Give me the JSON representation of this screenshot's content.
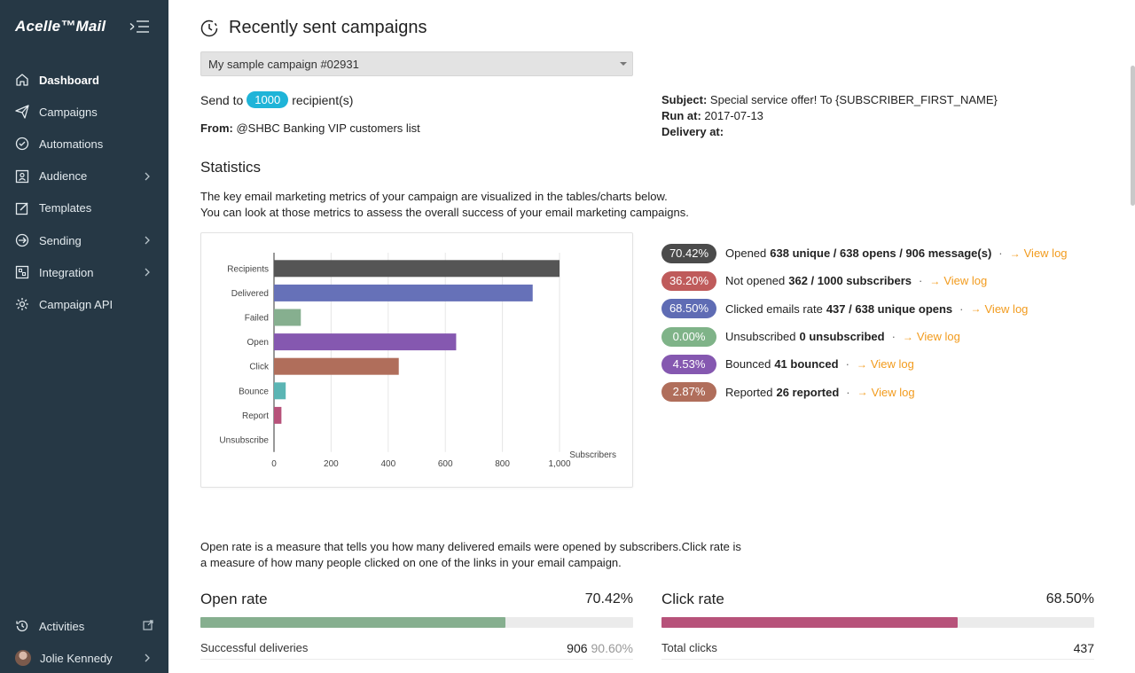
{
  "sidebar": {
    "logo": "Acelle™Mail",
    "items": [
      {
        "label": "Dashboard",
        "icon": "home-icon",
        "active": true,
        "chevron": false
      },
      {
        "label": "Campaigns",
        "icon": "paper-plane-icon",
        "active": false,
        "chevron": false
      },
      {
        "label": "Automations",
        "icon": "automation-check-icon",
        "active": false,
        "chevron": false
      },
      {
        "label": "Audience",
        "icon": "audience-icon",
        "active": false,
        "chevron": true
      },
      {
        "label": "Templates",
        "icon": "template-edit-icon",
        "active": false,
        "chevron": false
      },
      {
        "label": "Sending",
        "icon": "sending-icon",
        "active": false,
        "chevron": true
      },
      {
        "label": "Integration",
        "icon": "integration-icon",
        "active": false,
        "chevron": true
      },
      {
        "label": "Campaign API",
        "icon": "gear-icon",
        "active": false,
        "chevron": false
      }
    ],
    "activities_label": "Activities",
    "user_name": "Jolie Kennedy"
  },
  "header": {
    "title": "Recently sent campaigns"
  },
  "campaign": {
    "selected": "My sample campaign #02931",
    "send_to_prefix": "Send to",
    "recipient_count": "1000",
    "send_to_suffix": "recipient(s)",
    "from_label": "From:",
    "from_value": "@SHBC Banking VIP customers list",
    "subject_label": "Subject:",
    "subject_value": "Special service offer! To {SUBSCRIBER_FIRST_NAME}",
    "run_at_label": "Run at:",
    "run_at_value": "2017-07-13",
    "delivery_at_label": "Delivery at:"
  },
  "statistics": {
    "title": "Statistics",
    "desc_line1": "The key email marketing metrics of your campaign are visualized in the tables/charts below.",
    "desc_line2": "You can look at those metrics to assess the overall success of your email marketing campaigns."
  },
  "chart_data": {
    "type": "bar",
    "orientation": "horizontal",
    "categories": [
      "Recipients",
      "Delivered",
      "Failed",
      "Open",
      "Click",
      "Bounce",
      "Report",
      "Unsubscribe"
    ],
    "values": [
      1000,
      906,
      94,
      638,
      437,
      41,
      26,
      0
    ],
    "colors": [
      "#555555",
      "#6671b8",
      "#86af8f",
      "#8558b0",
      "#b06e5b",
      "#5bb5b4",
      "#b7527a",
      "#999999"
    ],
    "xlabel": "Subscribers",
    "xlim": [
      0,
      1000
    ],
    "xticks": [
      "0",
      "200",
      "400",
      "600",
      "800",
      "1,000"
    ],
    "grid": true
  },
  "metrics": [
    {
      "pct": "70.42%",
      "color": "#4b4b4b",
      "text": "Opened",
      "bold": "638 unique / 638 opens / 906 message(s)",
      "link": "View log"
    },
    {
      "pct": "36.20%",
      "color": "#bf5b5b",
      "text": "Not opened",
      "bold": "362 / 1000 subscribers",
      "link": "View log"
    },
    {
      "pct": "68.50%",
      "color": "#5f6cb4",
      "text": "Clicked emails rate",
      "bold": "437 / 638 unique opens",
      "link": "View log"
    },
    {
      "pct": "0.00%",
      "color": "#7fb388",
      "text": "Unsubscribed",
      "bold": "0 unsubscribed",
      "link": "View log"
    },
    {
      "pct": "4.53%",
      "color": "#8558b0",
      "text": "Bounced",
      "bold": "41 bounced",
      "link": "View log"
    },
    {
      "pct": "2.87%",
      "color": "#b06e5b",
      "text": "Reported",
      "bold": "26 reported",
      "link": "View log"
    }
  ],
  "rates": {
    "desc_line1": "Open rate is a measure that tells you how many delivered emails were opened by subscribers.Click rate is",
    "desc_line2": "a measure of how many people clicked on one of the links in your email campaign.",
    "open": {
      "label": "Open rate",
      "value": "70.42%",
      "fill": 0.7042,
      "color": "#86af8f",
      "foot_label": "Successful deliveries",
      "foot_num": "906",
      "foot_pct": "90.60%"
    },
    "click": {
      "label": "Click rate",
      "value": "68.50%",
      "fill": 0.685,
      "color": "#b7527a",
      "foot_label": "Total clicks",
      "foot_num": "437"
    }
  }
}
